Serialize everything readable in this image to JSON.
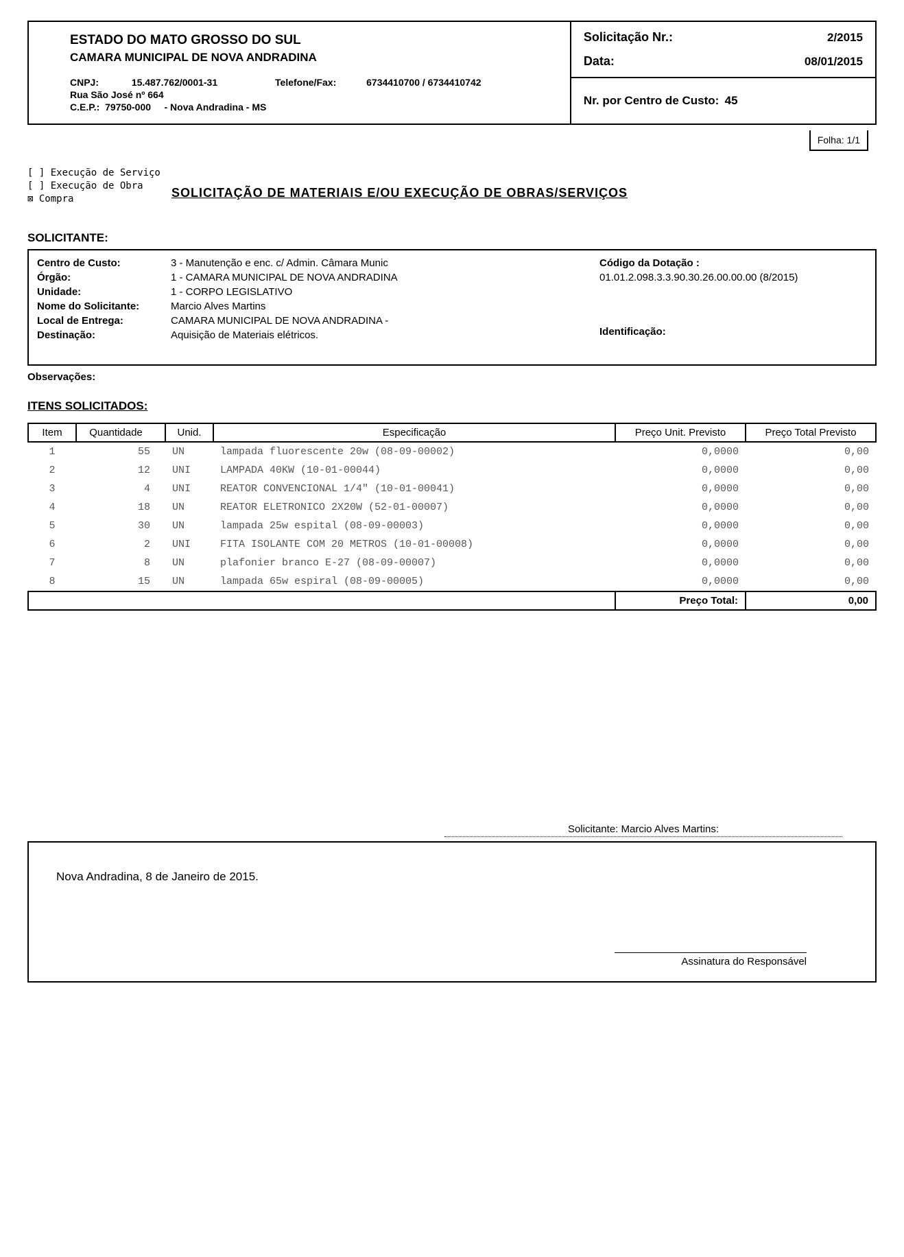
{
  "header": {
    "estado": "ESTADO DO MATO GROSSO DO SUL",
    "camara": "CAMARA MUNICIPAL DE NOVA ANDRADINA",
    "cnpj_label": "CNPJ:",
    "cnpj": "15.487.762/0001-31",
    "telfax_label": "Telefone/Fax:",
    "telfax": "6734410700 / 6734410742",
    "addr1": "Rua São José nº 664",
    "cep_label": "C.E.P.:",
    "cep": "79750-000",
    "cidade": "- Nova Andradina - MS",
    "solicitacao_label": "Solicitação Nr.:",
    "solicitacao_nr": "2/2015",
    "data_label": "Data:",
    "data": "08/01/2015",
    "nr_centro_label": "Nr. por Centro de Custo:",
    "nr_centro": "45",
    "folha_label": "Folha:",
    "folha": "1/1"
  },
  "checks": {
    "servico": "[   ] Execução de Serviço",
    "obra": "[   ] Execução de Obra",
    "compra": "⊠ Compra"
  },
  "main_title": "SOLICITAÇÃO  DE  MATERIAIS  E/OU  EXECUÇÃO  DE  OBRAS/SERVIÇOS",
  "solicitante": {
    "section": "SOLICITANTE:",
    "labels": {
      "centro": "Centro de Custo:",
      "orgao": "Órgão:",
      "unidade": "Unidade:",
      "nome": "Nome do Solicitante:",
      "local": "Local de Entrega:",
      "dest": "Destinação:",
      "codigo": "Código da Dotação :",
      "ident": "Identificação:"
    },
    "values": {
      "centro": "3  -  Manutenção e enc. c/ Admin. Câmara Munic",
      "orgao": "1  -  CAMARA MUNICIPAL DE NOVA ANDRADINA",
      "unidade": "1  -  CORPO LEGISLATIVO",
      "nome": "Marcio Alves Martins",
      "local": "CAMARA MUNICIPAL DE NOVA ANDRADINA   -",
      "dest": "Aquisição de Materiais elétricos.",
      "codigo": "01.01.2.098.3.3.90.30.26.00.00.00 (8/2015)"
    }
  },
  "observacoes_label": "Observações:",
  "itens_title": "ITENS SOLICITADOS:",
  "table": {
    "headers": {
      "item": "Item",
      "qt": "Quantidade",
      "unid": "Unid.",
      "esp": "Especificação",
      "pu": "Preço Unit. Previsto",
      "pt": "Preço Total Previsto"
    },
    "rows": [
      {
        "item": "1",
        "qt": "55",
        "unid": "UN",
        "esp": "lampada fluorescente 20w (08-09-00002)",
        "pu": "0,0000",
        "pt": "0,00"
      },
      {
        "item": "2",
        "qt": "12",
        "unid": "UNI",
        "esp": "LAMPADA 40KW (10-01-00044)",
        "pu": "0,0000",
        "pt": "0,00"
      },
      {
        "item": "3",
        "qt": "4",
        "unid": "UNI",
        "esp": "REATOR CONVENCIONAL 1/4\" (10-01-00041)",
        "pu": "0,0000",
        "pt": "0,00"
      },
      {
        "item": "4",
        "qt": "18",
        "unid": "UN",
        "esp": "REATOR ELETRONICO 2X20W (52-01-00007)",
        "pu": "0,0000",
        "pt": "0,00"
      },
      {
        "item": "5",
        "qt": "30",
        "unid": "UN",
        "esp": "lampada 25w espital (08-09-00003)",
        "pu": "0,0000",
        "pt": "0,00"
      },
      {
        "item": "6",
        "qt": "2",
        "unid": "UNI",
        "esp": "FITA ISOLANTE COM 20 METROS (10-01-00008)",
        "pu": "0,0000",
        "pt": "0,00"
      },
      {
        "item": "7",
        "qt": "8",
        "unid": "UN",
        "esp": "plafonier branco  E-27 (08-09-00007)",
        "pu": "0,0000",
        "pt": "0,00"
      },
      {
        "item": "8",
        "qt": "15",
        "unid": "UN",
        "esp": "lampada 65w espiral (08-09-00005)",
        "pu": "0,0000",
        "pt": "0,00"
      }
    ],
    "total_label": "Preço Total:",
    "total_value": "0,00"
  },
  "signature": {
    "sol_line": "Solicitante: Marcio Alves Martins:",
    "date_place": "Nova Andradina,  8  de  Janeiro  de  2015.",
    "resp": "Assinatura do Responsável"
  }
}
